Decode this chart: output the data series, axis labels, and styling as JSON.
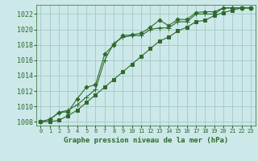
{
  "title": "Graphe pression niveau de la mer (hPa)",
  "background_color": "#cce8e8",
  "grid_color": "#aacccc",
  "line_color": "#2d6a2d",
  "xlim": [
    -0.5,
    23.5
  ],
  "ylim": [
    1007.5,
    1023.2
  ],
  "xticks": [
    0,
    1,
    2,
    3,
    4,
    5,
    6,
    7,
    8,
    9,
    10,
    11,
    12,
    13,
    14,
    15,
    16,
    17,
    18,
    19,
    20,
    21,
    22,
    23
  ],
  "yticks": [
    1008,
    1010,
    1012,
    1014,
    1016,
    1018,
    1020,
    1022
  ],
  "series": [
    [
      1008.0,
      1008.3,
      1009.2,
      1009.3,
      1011.0,
      1012.5,
      1012.8,
      1016.8,
      1018.0,
      1019.2,
      1019.3,
      1019.5,
      1020.3,
      1021.2,
      1020.5,
      1021.3,
      1021.3,
      1022.2,
      1022.3,
      1022.3,
      1022.8,
      1022.8,
      1022.8,
      1022.8
    ],
    [
      1008.0,
      1008.3,
      1009.2,
      1009.5,
      1010.2,
      1011.2,
      1012.2,
      1016.0,
      1018.2,
      1019.0,
      1019.2,
      1019.2,
      1020.0,
      1020.2,
      1020.2,
      1021.0,
      1021.0,
      1022.0,
      1022.0,
      1022.0,
      1022.8,
      1022.8,
      1022.8,
      1022.8
    ],
    [
      1008.0,
      1008.0,
      1008.2,
      1008.8,
      1009.5,
      1010.5,
      1011.5,
      1012.5,
      1013.5,
      1014.5,
      1015.5,
      1016.5,
      1017.5,
      1018.5,
      1019.0,
      1019.8,
      1020.3,
      1021.0,
      1021.2,
      1021.8,
      1022.2,
      1022.5,
      1022.8,
      1022.8
    ]
  ],
  "markers": [
    "D",
    "+",
    "s"
  ],
  "marker_sizes": [
    2.5,
    4.5,
    2.5
  ]
}
